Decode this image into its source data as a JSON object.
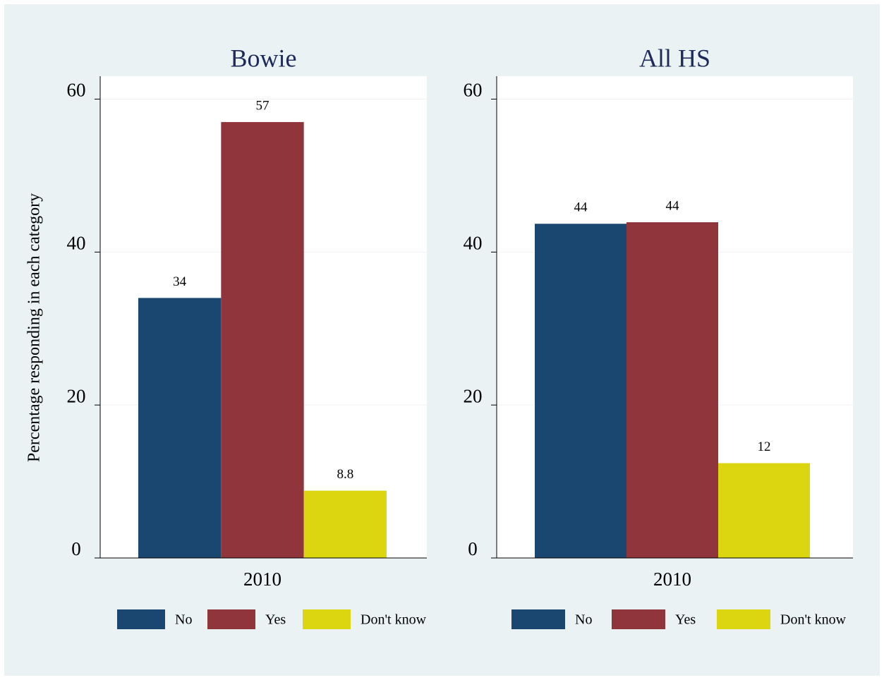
{
  "chart_data": [
    {
      "type": "bar",
      "title": "Bowie",
      "y_label": "Percentage responding in each category",
      "categories": [
        "2010"
      ],
      "series": [
        {
          "name": "No",
          "color": "#1a476f",
          "values": [
            34
          ]
        },
        {
          "name": "Yes",
          "color": "#90353b",
          "values": [
            57
          ]
        },
        {
          "name": "Don't know",
          "color": "#dbd60f",
          "values": [
            8.8
          ]
        }
      ],
      "ylim": [
        0,
        63
      ],
      "yticks": [
        0,
        20,
        40,
        60
      ],
      "grid": true,
      "legend": "bottom"
    },
    {
      "type": "bar",
      "title": "All HS",
      "categories": [
        "2010"
      ],
      "series": [
        {
          "name": "No",
          "color": "#1a476f",
          "values": [
            43.7
          ],
          "value_labels": [
            "44"
          ]
        },
        {
          "name": "Yes",
          "color": "#90353b",
          "values": [
            43.9
          ],
          "value_labels": [
            "44"
          ]
        },
        {
          "name": "Don't know",
          "color": "#dbd60f",
          "values": [
            12.4
          ],
          "value_labels": [
            "12"
          ]
        }
      ],
      "ylim": [
        0,
        63
      ],
      "yticks": [
        0,
        20,
        40,
        60
      ],
      "grid": true,
      "legend": "bottom"
    }
  ]
}
